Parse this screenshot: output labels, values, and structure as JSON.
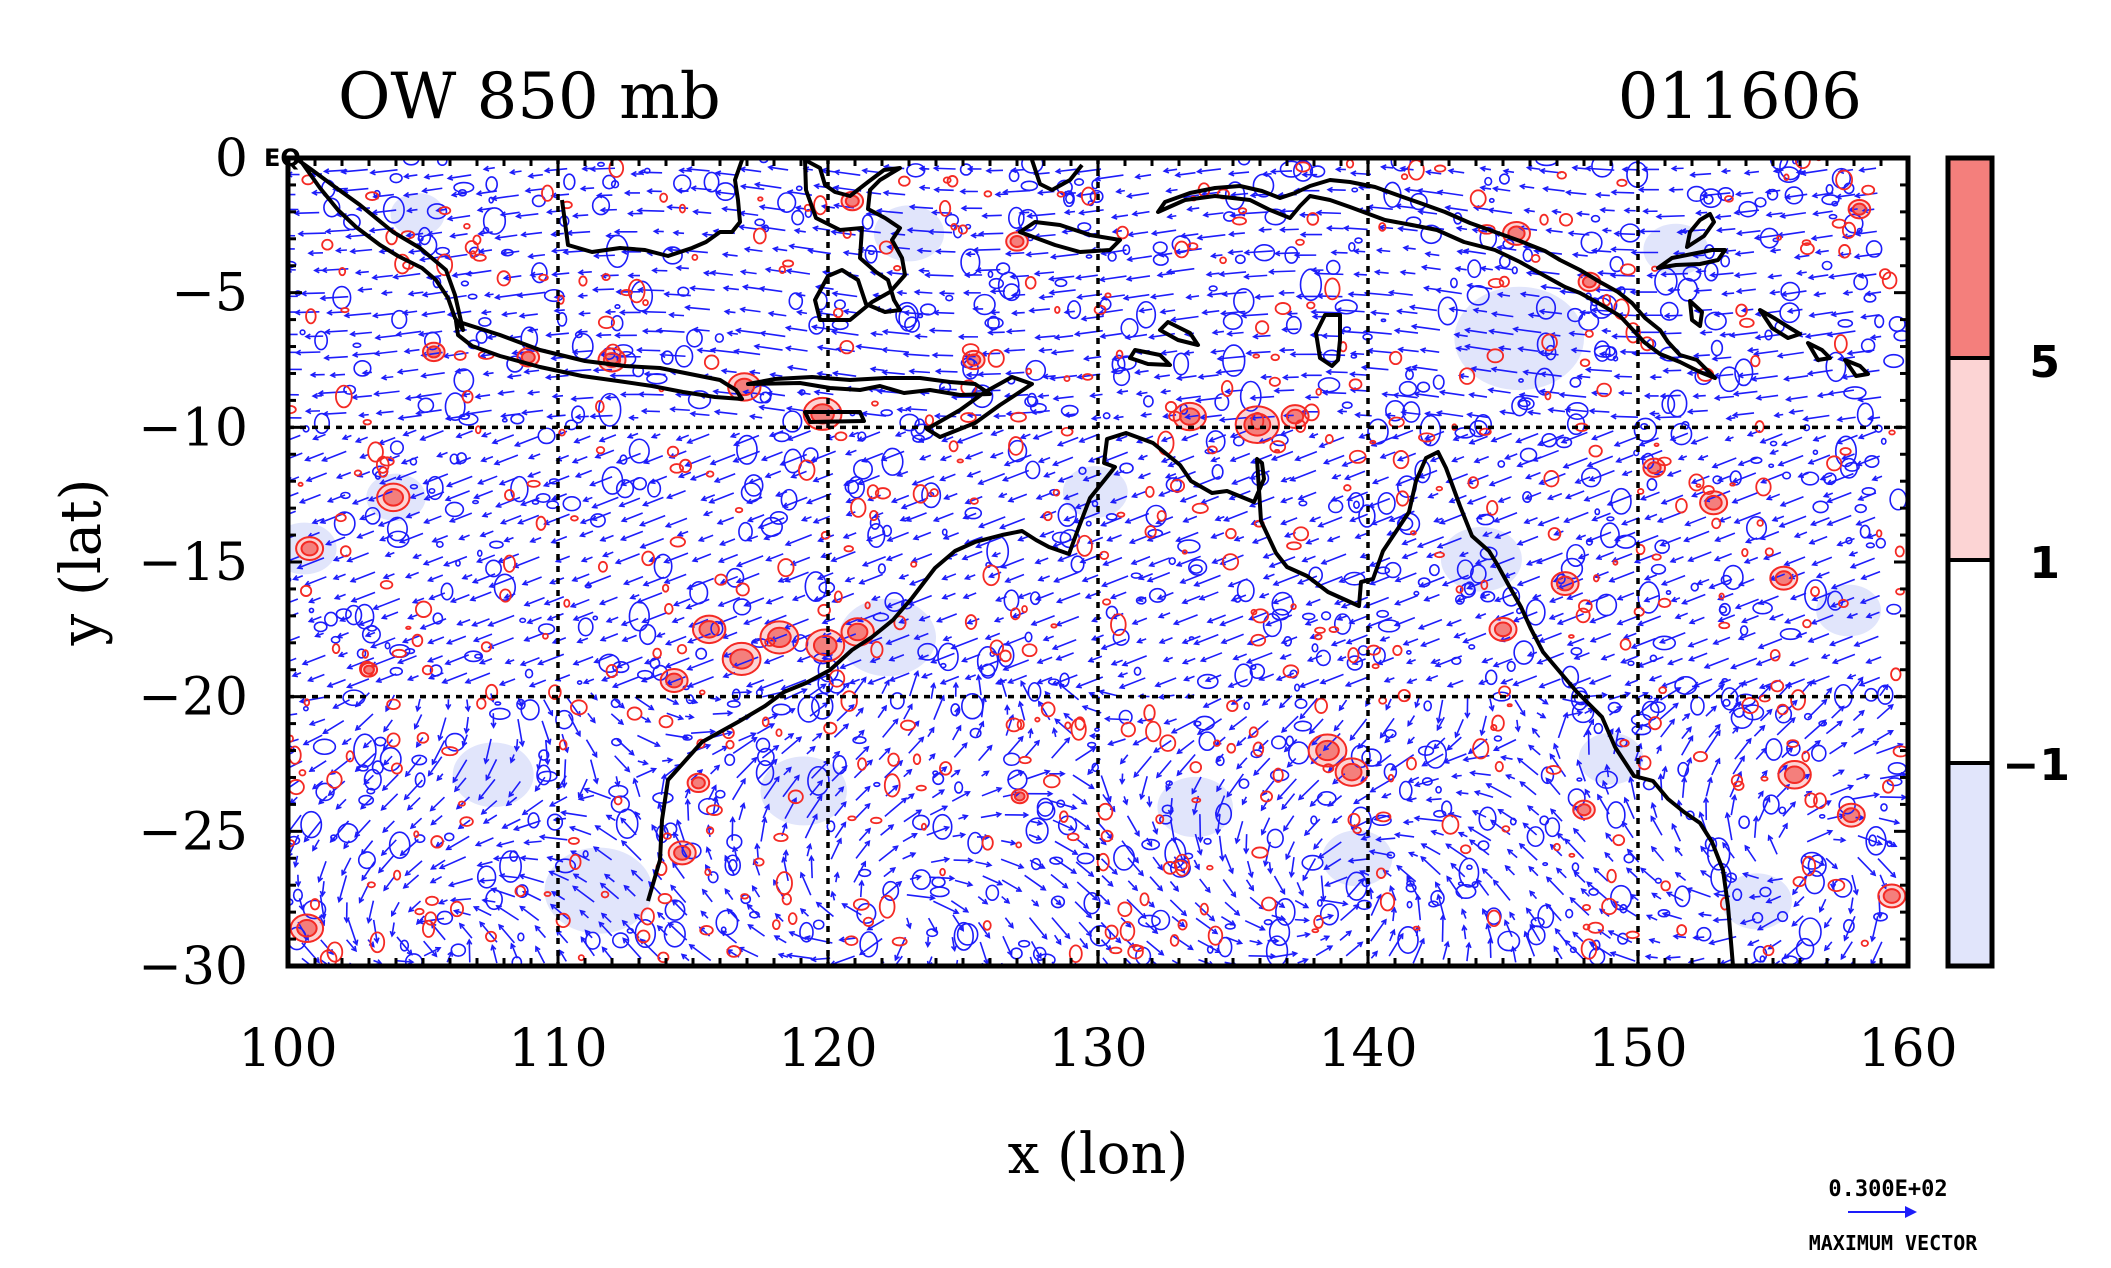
{
  "title": "OW 850 mb",
  "date_label": "011606",
  "equator_label": "EQ",
  "axes": {
    "xlabel": "x (lon)",
    "ylabel": "y (lat)",
    "xlim": [
      100,
      160
    ],
    "ylim": [
      -30,
      0
    ],
    "xticks": [
      100,
      110,
      120,
      130,
      140,
      150,
      160
    ],
    "yticks": [
      0,
      -5,
      -10,
      -15,
      -20,
      -25,
      -30
    ],
    "ytick_labels": [
      "0",
      "−5",
      "−10",
      "−15",
      "−20",
      "−25",
      "−30"
    ],
    "grid_lon": [
      110,
      120,
      130,
      140,
      150
    ],
    "grid_lat": [
      -10,
      -20
    ]
  },
  "colorbar": {
    "labels": [
      "5",
      "1",
      "−1"
    ],
    "levels": [
      -1,
      1,
      5
    ],
    "colors": {
      "strong_positive": "#f47f7c",
      "positive": "#fcd4d4",
      "neutral": "#ffffff",
      "negative": "#e1e5fb"
    }
  },
  "vector_key": {
    "value_label": "0.300E+02",
    "caption": "MAXIMUM VECTOR",
    "color": "#1d1dfa"
  },
  "colors": {
    "positive_contour": "#f42a24",
    "negative_contour": "#1d1dfa",
    "coastline": "#000000"
  },
  "chart_data": {
    "type": "heatmap",
    "variable": "OW 850 mb",
    "lon_range": [
      100,
      160
    ],
    "lat_range": [
      -30,
      0
    ],
    "positive_features": [
      {
        "lon": 100.8,
        "lat": -14.5,
        "r": 0.5
      },
      {
        "lon": 103.9,
        "lat": -12.6,
        "r": 0.6
      },
      {
        "lon": 115.6,
        "lat": -17.5,
        "r": 0.6
      },
      {
        "lon": 116.8,
        "lat": -18.6,
        "r": 0.7
      },
      {
        "lon": 118.2,
        "lat": -17.8,
        "r": 0.7
      },
      {
        "lon": 119.9,
        "lat": -18.1,
        "r": 0.7
      },
      {
        "lon": 121.1,
        "lat": -17.6,
        "r": 0.6
      },
      {
        "lon": 114.3,
        "lat": -19.4,
        "r": 0.5
      },
      {
        "lon": 116.9,
        "lat": -8.5,
        "r": 0.6
      },
      {
        "lon": 119.8,
        "lat": -9.5,
        "r": 0.7
      },
      {
        "lon": 112.0,
        "lat": -7.5,
        "r": 0.5
      },
      {
        "lon": 105.4,
        "lat": -7.2,
        "r": 0.4
      },
      {
        "lon": 133.4,
        "lat": -9.6,
        "r": 0.6
      },
      {
        "lon": 135.9,
        "lat": -9.9,
        "r": 0.8
      },
      {
        "lon": 137.3,
        "lat": -9.6,
        "r": 0.5
      },
      {
        "lon": 138.5,
        "lat": -22.0,
        "r": 0.7
      },
      {
        "lon": 139.4,
        "lat": -22.8,
        "r": 0.6
      },
      {
        "lon": 145.0,
        "lat": -17.5,
        "r": 0.5
      },
      {
        "lon": 147.3,
        "lat": -15.8,
        "r": 0.5
      },
      {
        "lon": 150.6,
        "lat": -11.5,
        "r": 0.4
      },
      {
        "lon": 152.8,
        "lat": -12.8,
        "r": 0.5
      },
      {
        "lon": 155.4,
        "lat": -15.6,
        "r": 0.5
      },
      {
        "lon": 155.8,
        "lat": -22.9,
        "r": 0.6
      },
      {
        "lon": 157.9,
        "lat": -24.4,
        "r": 0.5
      },
      {
        "lon": 159.4,
        "lat": -27.4,
        "r": 0.5
      },
      {
        "lon": 114.6,
        "lat": -25.8,
        "r": 0.5
      },
      {
        "lon": 115.2,
        "lat": -23.2,
        "r": 0.4
      },
      {
        "lon": 108.9,
        "lat": -7.4,
        "r": 0.4
      },
      {
        "lon": 125.4,
        "lat": -7.5,
        "r": 0.4
      },
      {
        "lon": 127.0,
        "lat": -3.1,
        "r": 0.4
      },
      {
        "lon": 120.9,
        "lat": -1.6,
        "r": 0.4
      },
      {
        "lon": 145.5,
        "lat": -2.8,
        "r": 0.5
      },
      {
        "lon": 148.2,
        "lat": -4.6,
        "r": 0.4
      },
      {
        "lon": 158.2,
        "lat": -1.9,
        "r": 0.4
      },
      {
        "lon": 103.0,
        "lat": -19.0,
        "r": 0.3
      },
      {
        "lon": 100.7,
        "lat": -28.6,
        "r": 0.6
      },
      {
        "lon": 127.1,
        "lat": -23.7,
        "r": 0.3
      },
      {
        "lon": 148.0,
        "lat": -24.2,
        "r": 0.4
      }
    ],
    "negative_features": [
      {
        "lon": 100.6,
        "lat": -14.5,
        "r": 1.2
      },
      {
        "lon": 104.0,
        "lat": -12.6,
        "r": 1.1
      },
      {
        "lon": 122.2,
        "lat": -17.8,
        "r": 1.8
      },
      {
        "lon": 111.5,
        "lat": -27.2,
        "r": 2.0
      },
      {
        "lon": 107.6,
        "lat": -22.9,
        "r": 1.5
      },
      {
        "lon": 119.1,
        "lat": -23.5,
        "r": 1.6
      },
      {
        "lon": 133.6,
        "lat": -24.1,
        "r": 1.4
      },
      {
        "lon": 144.2,
        "lat": -14.9,
        "r": 1.5
      },
      {
        "lon": 145.6,
        "lat": -6.7,
        "r": 2.4
      },
      {
        "lon": 151.4,
        "lat": -3.4,
        "r": 1.2
      },
      {
        "lon": 154.4,
        "lat": -27.6,
        "r": 1.3
      },
      {
        "lon": 157.8,
        "lat": -16.8,
        "r": 1.2
      },
      {
        "lon": 104.8,
        "lat": -2.1,
        "r": 1.0
      },
      {
        "lon": 123.0,
        "lat": -2.8,
        "r": 1.3
      },
      {
        "lon": 129.9,
        "lat": -12.4,
        "r": 1.2
      },
      {
        "lon": 139.6,
        "lat": -26.0,
        "r": 1.3
      },
      {
        "lon": 149.0,
        "lat": -22.3,
        "r": 1.2
      }
    ]
  }
}
